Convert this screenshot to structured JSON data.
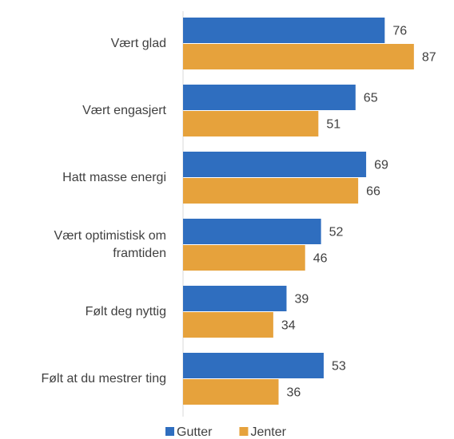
{
  "chart_data": {
    "type": "bar",
    "orientation": "horizontal",
    "categories": [
      "Vært glad",
      "Vært engasjert",
      "Hatt masse energi",
      "Vært optimistisk om framtiden",
      "Følt deg nyttig",
      "Følt at du mestrer ting"
    ],
    "series": [
      {
        "name": "Gutter",
        "color": "#2f6ebf",
        "values": [
          76,
          65,
          69,
          52,
          39,
          53
        ]
      },
      {
        "name": "Jenter",
        "color": "#e6a23c",
        "values": [
          87,
          51,
          66,
          46,
          34,
          36
        ]
      }
    ],
    "legend": "bottom"
  }
}
